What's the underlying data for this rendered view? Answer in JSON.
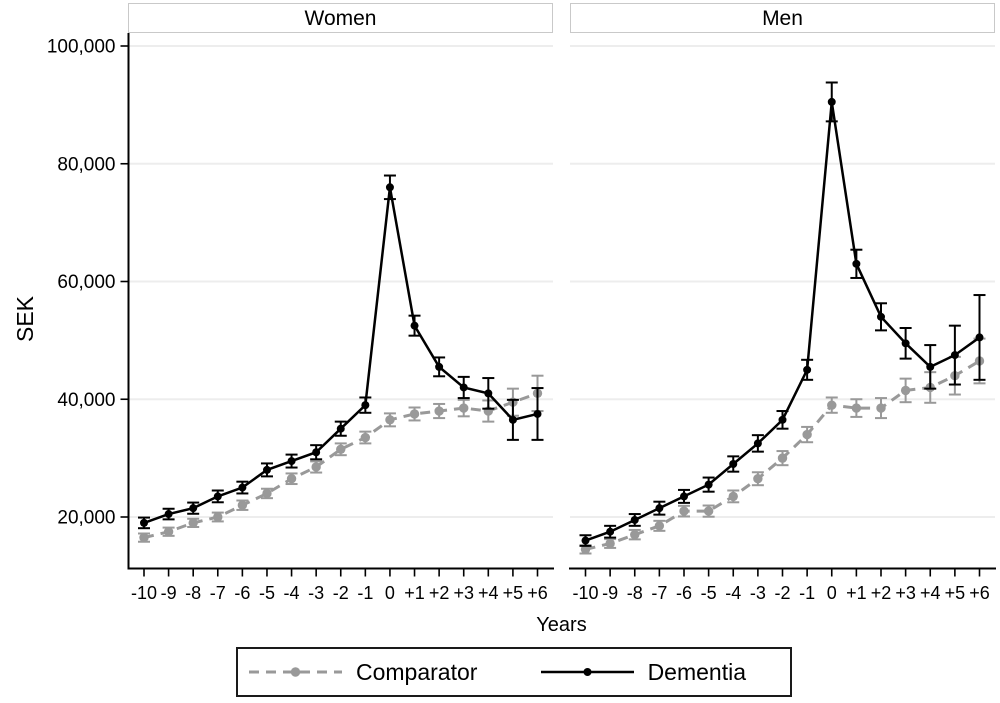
{
  "chart_data": {
    "type": "line",
    "xlabel": "Years",
    "ylabel": "SEK",
    "x": [
      -10,
      -9,
      -8,
      -7,
      -6,
      -5,
      -4,
      -3,
      -2,
      -1,
      0,
      1,
      2,
      3,
      4,
      5,
      6
    ],
    "x_tick_labels": [
      "-10",
      "-9",
      "-8",
      "-7",
      "-6",
      "-5",
      "-4",
      "-3",
      "-2",
      "-1",
      "0",
      "+1",
      "+2",
      "+3",
      "+4",
      "+5",
      "+6"
    ],
    "y_ticks": [
      20000,
      40000,
      60000,
      80000,
      100000
    ],
    "y_tick_labels": [
      "20,000",
      "40,000",
      "60,000",
      "80,000",
      "100,000"
    ],
    "ylim": [
      11300,
      101800
    ],
    "grid": "horizontal-light",
    "legend_position": "bottom",
    "error_bars": true,
    "colors": {
      "comparator": "#999999",
      "dementia": "#000000"
    },
    "panels": [
      {
        "title": "Women",
        "series": [
          {
            "key": "comparator",
            "name": "Comparator",
            "dashed": true,
            "values": [
              16500,
              17500,
              19000,
              20000,
              22000,
              24000,
              26500,
              28500,
              31500,
              33500,
              36500,
              37500,
              38000,
              38500,
              38000,
              39500,
              41000
            ],
            "errors": [
              700,
              700,
              700,
              750,
              800,
              800,
              900,
              950,
              1000,
              1000,
              1100,
              1100,
              1200,
              1400,
              1800,
              2300,
              3000
            ]
          },
          {
            "key": "dementia",
            "name": "Dementia",
            "dashed": false,
            "values": [
              19000,
              20500,
              21500,
              23500,
              25000,
              28000,
              29500,
              31000,
              35000,
              39000,
              76000,
              52500,
              45500,
              42000,
              41000,
              36500,
              37500
            ],
            "errors": [
              900,
              900,
              950,
              1000,
              1000,
              1100,
              1100,
              1200,
              1200,
              1300,
              2000,
              1700,
              1600,
              1800,
              2600,
              3400,
              4400
            ]
          }
        ]
      },
      {
        "title": "Men",
        "series": [
          {
            "key": "comparator",
            "name": "Comparator",
            "dashed": true,
            "values": [
              14500,
              15500,
              17000,
              18500,
              21000,
              21000,
              23500,
              26500,
              30000,
              34000,
              39000,
              38500,
              38500,
              41500,
              42000,
              44000,
              46500
            ],
            "errors": [
              700,
              750,
              800,
              850,
              900,
              950,
              1000,
              1100,
              1200,
              1300,
              1300,
              1500,
              1700,
              2000,
              2600,
              3200,
              3800
            ]
          },
          {
            "key": "dementia",
            "name": "Dementia",
            "dashed": false,
            "values": [
              16000,
              17500,
              19500,
              21500,
              23500,
              25500,
              29000,
              32500,
              36500,
              45000,
              90500,
              63000,
              54000,
              49500,
              45500,
              47500,
              50500
            ],
            "errors": [
              900,
              1000,
              1000,
              1100,
              1100,
              1200,
              1300,
              1400,
              1500,
              1700,
              3300,
              2400,
              2300,
              2600,
              3700,
              5000,
              7200
            ]
          }
        ]
      }
    ],
    "legend": [
      {
        "label": "Comparator",
        "series": "comparator",
        "line_style": "dashed"
      },
      {
        "label": "Dementia",
        "series": "dementia",
        "line_style": "solid"
      }
    ]
  }
}
